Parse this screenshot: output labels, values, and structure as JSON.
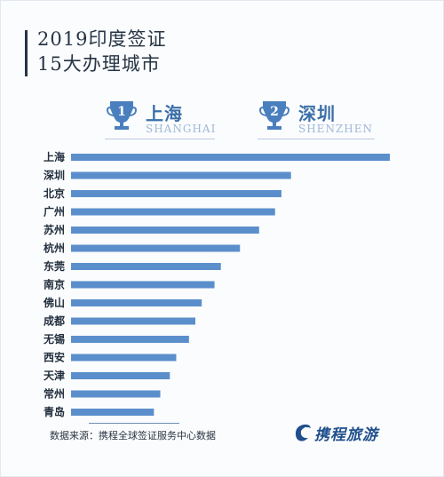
{
  "title": {
    "line1": "2019印度签证",
    "line2": "15大办理城市"
  },
  "top_ranks": [
    {
      "rank": "1",
      "city": "上海",
      "pinyin": "SHANGHAI"
    },
    {
      "rank": "2",
      "city": "深圳",
      "pinyin": "SHENZHEN"
    }
  ],
  "source": "数据来源：携程全球签证服务中心数据",
  "logo": {
    "text": "携程旅游",
    "icon": "dolphin-logo-icon"
  },
  "colors": {
    "bar": "#5b8fcc",
    "trophy": "#4a7fbf",
    "title": "#263445"
  },
  "chart_data": {
    "type": "bar",
    "orientation": "horizontal",
    "categories": [
      "上海",
      "深圳",
      "北京",
      "广州",
      "苏州",
      "杭州",
      "东莞",
      "南京",
      "佛山",
      "成都",
      "无锡",
      "西安",
      "天津",
      "常州",
      "青岛"
    ],
    "values": [
      100,
      69,
      66,
      64,
      59,
      53,
      47,
      45,
      41,
      39,
      37,
      33,
      31,
      28,
      26
    ],
    "xlim": [
      0,
      100
    ],
    "grid": false,
    "legend": "none"
  }
}
